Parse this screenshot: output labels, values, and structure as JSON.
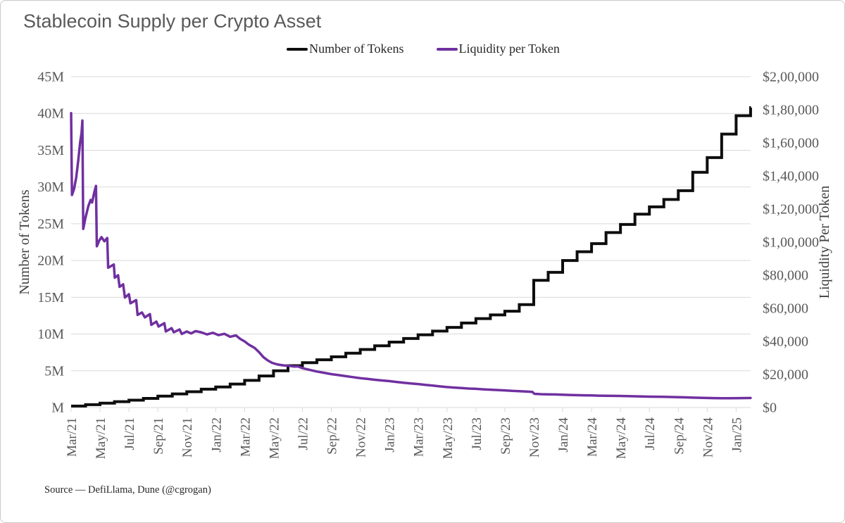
{
  "title": "Stablecoin Supply per Crypto Asset",
  "source": "Source — DefiLlama, Dune (@cgrogan)",
  "legend": [
    {
      "label": "Number of Tokens",
      "color": "#0d0d0d"
    },
    {
      "label": "Liquidity per Token",
      "color": "#7030A0"
    }
  ],
  "colors": {
    "title_text": "#595959",
    "tick_text": "#595959",
    "axis_title_text": "#404040",
    "gridline": "#d9d9d9",
    "tokens_line": "#0d0d0d",
    "liquidity_line": "#7030A0"
  },
  "chart_data": {
    "type": "line",
    "title": "Stablecoin Supply per Crypto Asset",
    "grid": "horizontal",
    "legend_position": "top-center",
    "x_unit": "months, 0 = Mar/21",
    "x_tick_labels": [
      "Mar/21",
      "May/21",
      "Jul/21",
      "Sep/21",
      "Nov/21",
      "Jan/22",
      "Mar/22",
      "May/22",
      "Jul/22",
      "Sep/22",
      "Nov/22",
      "Jan/23",
      "Mar/23",
      "May/23",
      "Jul/23",
      "Sep/23",
      "Nov/23",
      "Jan/24",
      "Mar/24",
      "May/24",
      "Jul/24",
      "Sep/24",
      "Nov/24",
      "Jan/25"
    ],
    "x_tick_months": [
      0,
      2,
      4,
      6,
      8,
      10,
      12,
      14,
      16,
      18,
      20,
      22,
      24,
      26,
      28,
      30,
      32,
      34,
      36,
      38,
      40,
      42,
      44,
      46
    ],
    "left_axis": {
      "label": "Number of Tokens",
      "unit": "millions of tokens",
      "range": [
        0,
        45
      ],
      "tick_values": [
        0,
        5,
        10,
        15,
        20,
        25,
        30,
        35,
        40,
        45
      ],
      "tick_labels": [
        "M",
        "5M",
        "10M",
        "15M",
        "20M",
        "25M",
        "30M",
        "35M",
        "40M",
        "45M"
      ]
    },
    "right_axis": {
      "label": "Liquidity Per Token",
      "unit": "USD",
      "range": [
        0,
        200000
      ],
      "tick_values": [
        0,
        20000,
        40000,
        60000,
        80000,
        100000,
        120000,
        140000,
        160000,
        180000,
        200000
      ],
      "tick_labels": [
        "$0",
        "$20,000",
        "$40,000",
        "$60,000",
        "$80,000",
        "$1,00,000",
        "$1,20,000",
        "$1,40,000",
        "$1,60,000",
        "$1,80,000",
        "$2,00,000"
      ]
    },
    "series": [
      {
        "name": "Number of Tokens",
        "axis": "left",
        "style": "step",
        "color": "#0d0d0d",
        "start_month": 0,
        "values_millions": [
          0.2,
          0.4,
          0.6,
          0.8,
          1.0,
          1.25,
          1.55,
          1.85,
          2.15,
          2.5,
          2.8,
          3.2,
          3.7,
          4.3,
          5.0,
          5.7,
          6.1,
          6.5,
          6.9,
          7.4,
          7.9,
          8.4,
          8.9,
          9.4,
          9.9,
          10.4,
          10.9,
          11.5,
          12.1,
          12.6,
          13.1,
          14.0,
          17.3,
          18.4,
          20.0,
          21.2,
          22.3,
          23.8,
          24.9,
          26.3,
          27.3,
          28.3,
          29.5,
          32.0,
          34.0,
          37.2,
          39.7,
          40.8
        ]
      },
      {
        "name": "Liquidity per Token",
        "axis": "right",
        "style": "line",
        "color": "#7030A0",
        "points_month_usd": [
          [
            0,
            178000
          ],
          [
            0.06,
            128500
          ],
          [
            0.2,
            132000
          ],
          [
            0.35,
            139000
          ],
          [
            0.5,
            150000
          ],
          [
            0.62,
            160000
          ],
          [
            0.72,
            166000
          ],
          [
            0.78,
            173500
          ],
          [
            0.84,
            108000
          ],
          [
            1.0,
            115000
          ],
          [
            1.2,
            122000
          ],
          [
            1.35,
            125500
          ],
          [
            1.45,
            124000
          ],
          [
            1.6,
            130000
          ],
          [
            1.72,
            134000
          ],
          [
            1.78,
            97500
          ],
          [
            1.95,
            101000
          ],
          [
            2.1,
            103000
          ],
          [
            2.3,
            100500
          ],
          [
            2.5,
            102500
          ],
          [
            2.56,
            84500
          ],
          [
            2.75,
            85500
          ],
          [
            2.95,
            86500
          ],
          [
            3.02,
            78500
          ],
          [
            3.25,
            80000
          ],
          [
            3.35,
            73000
          ],
          [
            3.6,
            74500
          ],
          [
            3.72,
            66500
          ],
          [
            4.0,
            68500
          ],
          [
            4.1,
            63000
          ],
          [
            4.5,
            65000
          ],
          [
            4.6,
            56000
          ],
          [
            4.9,
            57500
          ],
          [
            5.1,
            54500
          ],
          [
            5.45,
            56500
          ],
          [
            5.55,
            50000
          ],
          [
            5.9,
            52000
          ],
          [
            6.05,
            49000
          ],
          [
            6.45,
            51000
          ],
          [
            6.55,
            46000
          ],
          [
            6.95,
            48000
          ],
          [
            7.1,
            45500
          ],
          [
            7.5,
            47200
          ],
          [
            7.65,
            44500
          ],
          [
            8.0,
            46000
          ],
          [
            8.3,
            44800
          ],
          [
            8.6,
            46200
          ],
          [
            9.0,
            45500
          ],
          [
            9.4,
            44200
          ],
          [
            9.8,
            45200
          ],
          [
            10.2,
            43800
          ],
          [
            10.6,
            44600
          ],
          [
            11.0,
            42800
          ],
          [
            11.4,
            43600
          ],
          [
            11.7,
            41500
          ],
          [
            12.0,
            40000
          ],
          [
            12.3,
            38000
          ],
          [
            12.7,
            36000
          ],
          [
            13.0,
            33500
          ],
          [
            13.3,
            30500
          ],
          [
            13.6,
            28500
          ],
          [
            13.9,
            27000
          ],
          [
            14.3,
            26000
          ],
          [
            14.7,
            25500
          ],
          [
            15.0,
            25300
          ],
          [
            15.4,
            24800
          ],
          [
            15.7,
            24900
          ],
          [
            16.0,
            23800
          ],
          [
            16.5,
            22800
          ],
          [
            17.0,
            21800
          ],
          [
            17.5,
            21000
          ],
          [
            18.0,
            20200
          ],
          [
            18.5,
            19600
          ],
          [
            19.0,
            19000
          ],
          [
            19.5,
            18400
          ],
          [
            20.0,
            17800
          ],
          [
            20.5,
            17300
          ],
          [
            21.0,
            16800
          ],
          [
            21.5,
            16400
          ],
          [
            22.0,
            16000
          ],
          [
            22.5,
            15500
          ],
          [
            23.0,
            15000
          ],
          [
            23.5,
            14600
          ],
          [
            24.0,
            14200
          ],
          [
            24.5,
            13700
          ],
          [
            25.0,
            13300
          ],
          [
            25.5,
            12800
          ],
          [
            26.0,
            12400
          ],
          [
            26.5,
            12100
          ],
          [
            27.0,
            11800
          ],
          [
            27.5,
            11500
          ],
          [
            28.0,
            11300
          ],
          [
            28.5,
            11000
          ],
          [
            29.0,
            10800
          ],
          [
            29.5,
            10600
          ],
          [
            30.0,
            10400
          ],
          [
            30.5,
            10100
          ],
          [
            31.0,
            9900
          ],
          [
            31.5,
            9700
          ],
          [
            31.9,
            9500
          ],
          [
            32.05,
            8300
          ],
          [
            32.5,
            8100
          ],
          [
            33.0,
            8000
          ],
          [
            33.5,
            7900
          ],
          [
            34.0,
            7800
          ],
          [
            34.5,
            7600
          ],
          [
            35.0,
            7500
          ],
          [
            35.5,
            7400
          ],
          [
            36.0,
            7300
          ],
          [
            36.5,
            7200
          ],
          [
            37.0,
            7100
          ],
          [
            37.5,
            7050
          ],
          [
            38.0,
            7000
          ],
          [
            38.5,
            6900
          ],
          [
            39.0,
            6800
          ],
          [
            39.5,
            6700
          ],
          [
            40.0,
            6600
          ],
          [
            40.5,
            6550
          ],
          [
            41.0,
            6500
          ],
          [
            41.5,
            6400
          ],
          [
            42.0,
            6300
          ],
          [
            42.5,
            6150
          ],
          [
            43.0,
            6000
          ],
          [
            43.5,
            5900
          ],
          [
            44.0,
            5800
          ],
          [
            44.5,
            5700
          ],
          [
            45.0,
            5600
          ],
          [
            45.6,
            5600
          ],
          [
            46.2,
            5700
          ],
          [
            47.0,
            5800
          ]
        ]
      }
    ]
  }
}
